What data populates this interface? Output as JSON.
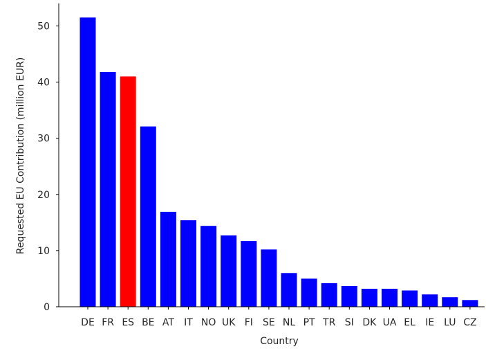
{
  "chart_data": {
    "type": "bar",
    "title": "",
    "xlabel": "Country",
    "ylabel": "Requested EU Contribution (million EUR)",
    "ylim": [
      0,
      54
    ],
    "yticks": [
      "0",
      "10",
      "20",
      "30",
      "40",
      "50"
    ],
    "categories": [
      "DE",
      "FR",
      "ES",
      "BE",
      "AT",
      "IT",
      "NO",
      "UK",
      "FI",
      "SE",
      "NL",
      "PT",
      "TR",
      "SI",
      "DK",
      "UA",
      "EL",
      "IE",
      "LU",
      "CZ"
    ],
    "values": [
      51.5,
      41.8,
      41.0,
      32.1,
      16.9,
      15.4,
      14.4,
      12.7,
      11.7,
      10.2,
      6.0,
      5.0,
      4.2,
      3.7,
      3.2,
      3.2,
      2.9,
      2.2,
      1.7,
      1.2
    ],
    "bar_colors": [
      "#0000ff",
      "#0000ff",
      "#ff0000",
      "#0000ff",
      "#0000ff",
      "#0000ff",
      "#0000ff",
      "#0000ff",
      "#0000ff",
      "#0000ff",
      "#0000ff",
      "#0000ff",
      "#0000ff",
      "#0000ff",
      "#0000ff",
      "#0000ff",
      "#0000ff",
      "#0000ff",
      "#0000ff",
      "#0000ff"
    ],
    "grid": false,
    "legend": "none"
  }
}
